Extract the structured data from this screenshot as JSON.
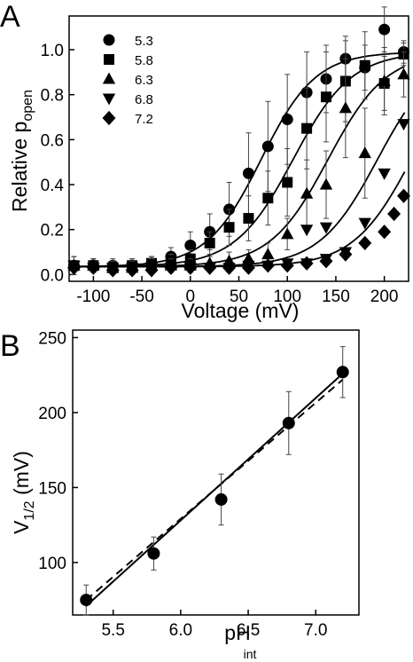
{
  "chart_data": [
    {
      "type": "scatter",
      "panel_label": "A",
      "title": "",
      "xlabel": "Voltage (mV)",
      "ylabel_main": "Relative p",
      "ylabel_sub": "open",
      "xlim": [
        -125,
        225
      ],
      "ylim": [
        -0.03,
        1.15
      ],
      "xticks": [
        -100,
        -50,
        0,
        50,
        100,
        150,
        200
      ],
      "yticks": [
        0.0,
        0.2,
        0.4,
        0.6,
        0.8,
        1.0
      ],
      "ytick_labels": [
        "0.0",
        "0.2",
        "0.4",
        "0.6",
        "0.8",
        "1.0"
      ],
      "legend_position": "top-left",
      "x": [
        -120,
        -100,
        -80,
        -60,
        -40,
        -20,
        0,
        20,
        40,
        60,
        80,
        100,
        120,
        140,
        160,
        180,
        200,
        220
      ],
      "series": [
        {
          "name": "5.3",
          "marker": "circle",
          "values": [
            0.04,
            0.04,
            0.04,
            0.04,
            0.05,
            0.08,
            0.13,
            0.19,
            0.29,
            0.45,
            0.57,
            0.69,
            0.81,
            0.87,
            0.96,
            0.92,
            1.09,
            0.99
          ],
          "err": [
            0.04,
            0.03,
            0.03,
            0.03,
            0.03,
            0.04,
            0.06,
            0.08,
            0.12,
            0.18,
            0.2,
            0.2,
            0.18,
            0.15,
            0.1,
            0.1,
            0.1,
            0.05
          ]
        },
        {
          "name": "5.8",
          "marker": "square",
          "values": [
            0.04,
            0.04,
            0.03,
            0.04,
            0.05,
            0.06,
            0.07,
            0.14,
            0.21,
            0.25,
            0.34,
            0.41,
            0.65,
            0.79,
            0.86,
            0.93,
            0.85,
            0.98
          ],
          "err": [
            0.04,
            0.03,
            0.03,
            0.03,
            0.03,
            0.03,
            0.04,
            0.05,
            0.08,
            0.1,
            0.12,
            0.15,
            0.18,
            0.2,
            0.18,
            0.15,
            0.12,
            0.05
          ]
        },
        {
          "name": "6.3",
          "marker": "triangle-up",
          "values": [
            0.04,
            0.04,
            0.03,
            0.03,
            0.04,
            0.04,
            0.04,
            0.05,
            0.06,
            0.07,
            0.09,
            0.18,
            0.36,
            0.4,
            0.74,
            0.54,
            0.86,
            0.89
          ],
          "err": [
            0.04,
            0.03,
            0.03,
            0.03,
            0.03,
            0.03,
            0.03,
            0.03,
            0.04,
            0.04,
            0.05,
            0.07,
            0.15,
            0.15,
            0.22,
            0.2,
            0.15,
            0.1
          ]
        },
        {
          "name": "6.8",
          "marker": "triangle-down",
          "values": [
            0.04,
            0.03,
            0.03,
            0.03,
            0.03,
            0.03,
            0.03,
            0.03,
            0.03,
            0.04,
            0.04,
            0.05,
            0.05,
            0.07,
            0.1,
            0.2,
            0.21,
            0.23,
            0.45,
            0.67
          ],
          "err": [],
          "x_override": [
            -120,
            -100,
            -80,
            -60,
            -40,
            -20,
            0,
            20,
            40,
            60,
            80,
            100,
            120,
            140,
            160,
            120,
            140,
            180,
            200,
            220
          ]
        },
        {
          "name": "7.2",
          "marker": "diamond",
          "values": [
            0.03,
            0.03,
            0.02,
            0.02,
            0.02,
            0.03,
            0.03,
            0.03,
            0.03,
            0.03,
            0.04,
            0.04,
            0.05,
            0.06,
            0.09,
            0.14,
            0.19,
            0.27,
            0.35
          ],
          "err": [],
          "x_override": [
            -120,
            -100,
            -80,
            -60,
            -40,
            -20,
            0,
            20,
            40,
            60,
            80,
            100,
            120,
            140,
            160,
            180,
            200,
            210,
            220
          ]
        }
      ],
      "fits": [
        {
          "name": "5.3",
          "vhalf": 73,
          "slope": 28,
          "base": 0.035,
          "top": 0.99
        },
        {
          "name": "5.8",
          "vhalf": 106,
          "slope": 30,
          "base": 0.035,
          "top": 0.99
        },
        {
          "name": "6.3",
          "vhalf": 142,
          "slope": 30,
          "base": 0.035,
          "top": 0.99
        },
        {
          "name": "6.8",
          "vhalf": 193,
          "slope": 30,
          "base": 0.035,
          "top": 0.99
        },
        {
          "name": "7.2",
          "vhalf": 228,
          "slope": 30,
          "base": 0.035,
          "top": 0.99
        }
      ]
    },
    {
      "type": "scatter",
      "panel_label": "B",
      "title": "",
      "xlabel_main": "pH",
      "xlabel_sub": "int",
      "ylabel_main": "V",
      "ylabel_sub": "1/2",
      "ylabel_tail": " (mV)",
      "xlim": [
        5.2,
        7.32
      ],
      "ylim": [
        65,
        255
      ],
      "xticks": [
        5.5,
        6.0,
        6.5,
        7.0
      ],
      "xtick_labels": [
        "5.5",
        "6.0",
        "6.5",
        "7.0"
      ],
      "yticks": [
        100,
        150,
        200,
        250
      ],
      "x": [
        5.3,
        5.8,
        6.3,
        6.8,
        7.2
      ],
      "values": [
        75,
        106,
        142,
        193,
        227
      ],
      "err": [
        10,
        11,
        17,
        21,
        17
      ],
      "lines": [
        {
          "style": "solid",
          "x": [
            5.3,
            7.2
          ],
          "y": [
            71,
            226
          ]
        },
        {
          "style": "dashed",
          "x": [
            5.3,
            7.2
          ],
          "y": [
            75,
            222
          ]
        }
      ]
    }
  ]
}
